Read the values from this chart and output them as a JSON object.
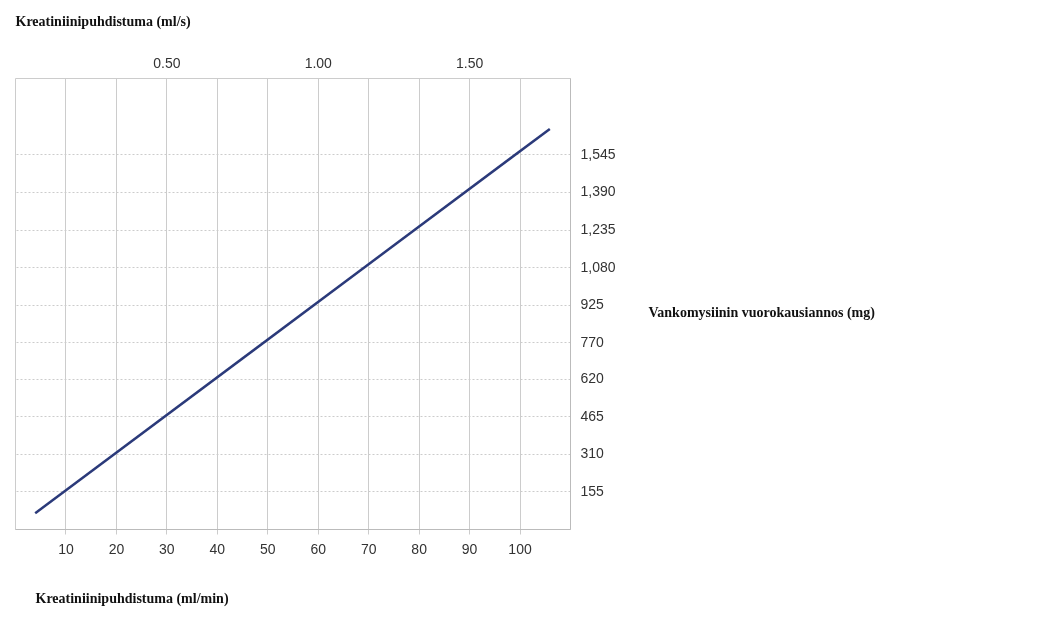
{
  "chart_data": {
    "type": "line",
    "x": [
      4,
      106
    ],
    "series": [
      {
        "color": "#2b3a7a",
        "axis": "y2",
        "values": [
          65,
          1650
        ]
      }
    ],
    "xlabel": "Kreatiniinipuhdistuma (ml/min)",
    "x2label": "Kreatiniinipuhdistuma (ml/s)",
    "y2label": "Vankomysiinin vuorokausiannos (mg)",
    "xlim": [
      0,
      110
    ],
    "xticks": [
      10,
      20,
      30,
      40,
      50,
      60,
      70,
      80,
      90,
      100
    ],
    "x2lim": [
      0,
      1.833
    ],
    "x2ticks": [
      {
        "value": 0.5,
        "label": "0.50"
      },
      {
        "value": 1.0,
        "label": "1.00"
      },
      {
        "value": 1.5,
        "label": "1.50"
      }
    ],
    "y2lim": [
      0,
      1860
    ],
    "y2ticks": [
      155,
      310,
      465,
      620,
      770,
      925,
      {
        "value": 1080,
        "label": "1,080"
      },
      {
        "value": 1235,
        "label": "1,235"
      },
      {
        "value": 1390,
        "label": "1,390"
      },
      {
        "value": 1545,
        "label": "1,545"
      }
    ],
    "grid": true
  }
}
